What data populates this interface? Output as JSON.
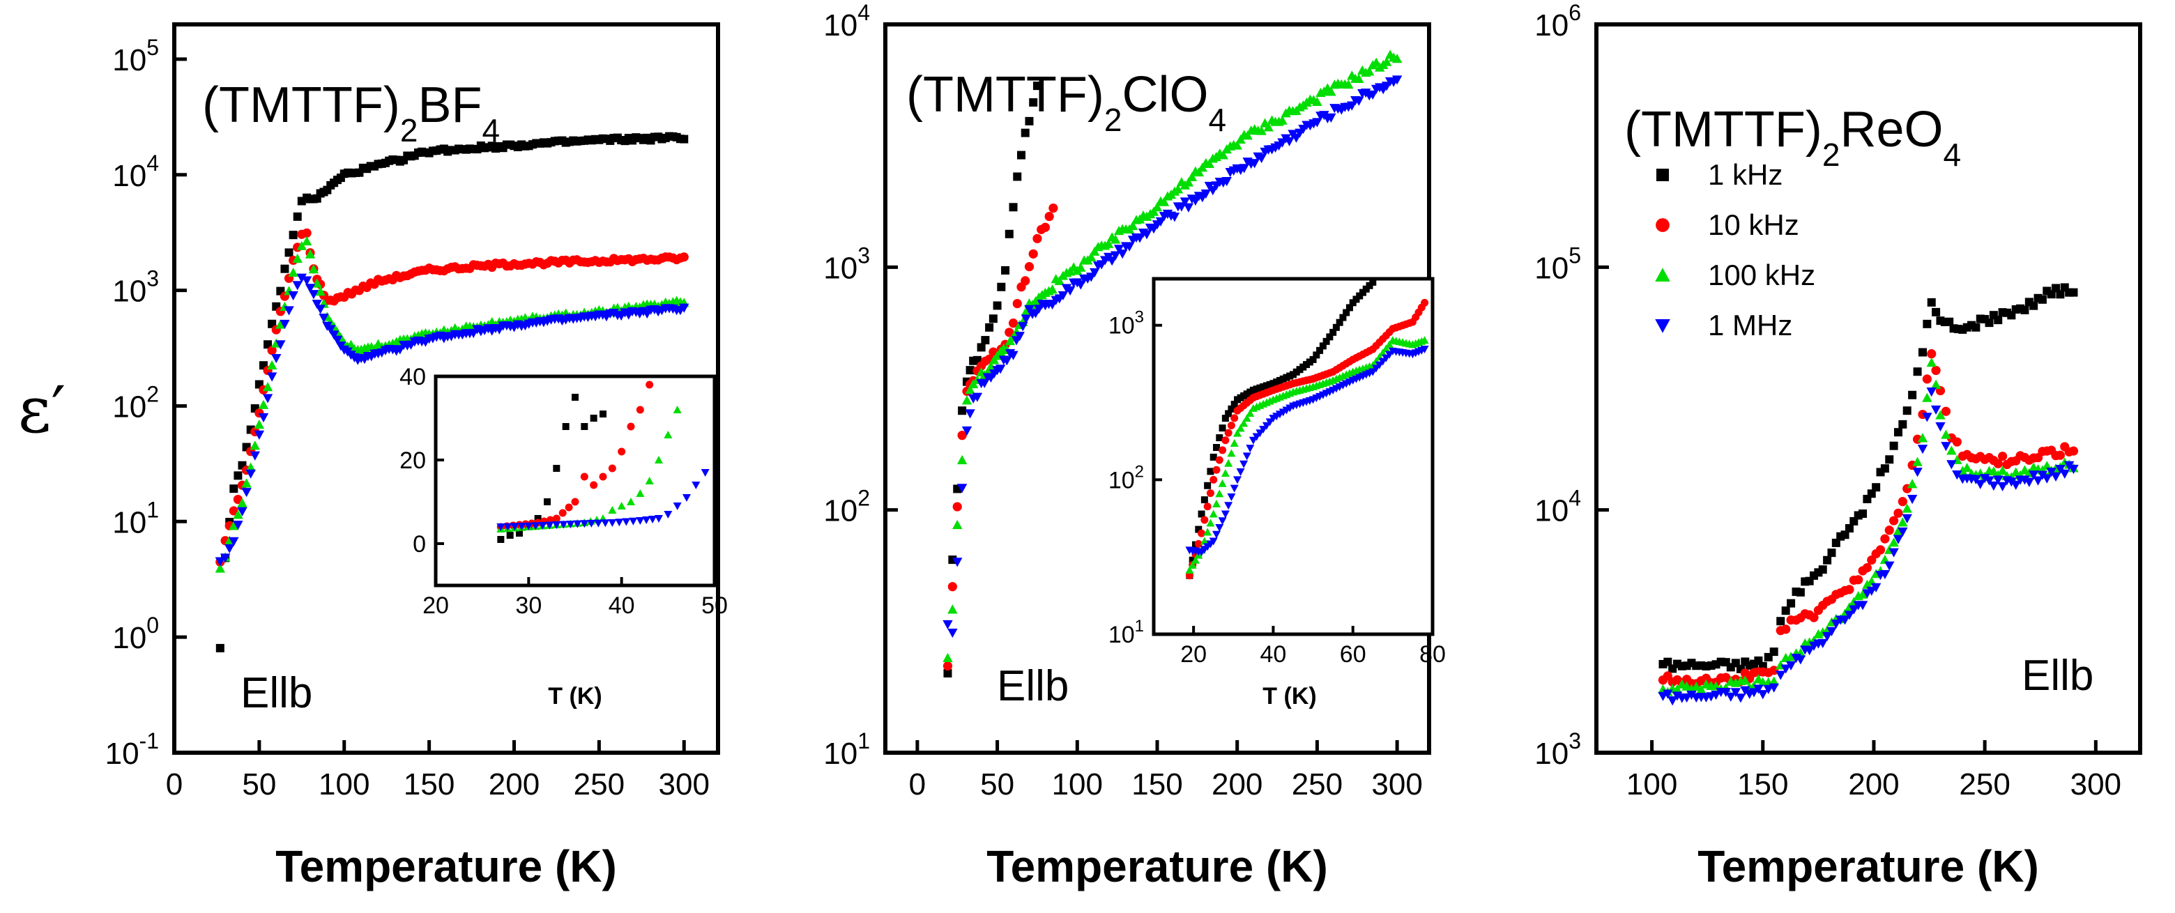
{
  "figure": {
    "ylabel": "ε′",
    "xlabel": "Temperature (K)",
    "colors": {
      "1 kHz": "#000000",
      "10 kHz": "#ff0000",
      "100 kHz": "#00dd00",
      "1 MHz": "#0000ff"
    },
    "legend": [
      "1 kHz",
      "10 kHz",
      "100 kHz",
      "1 MHz"
    ]
  },
  "chart_data": [
    {
      "type": "scatter",
      "title_base": "(TMTTF)",
      "title_sub1": "2",
      "title_mid": "BF",
      "title_sub2": "4",
      "annotation": "Ellb",
      "xlabel": "Temperature (K)",
      "ylabel": "ε′",
      "xlim": [
        0,
        320
      ],
      "ylim": [
        0.1,
        200000
      ],
      "yscale": "log",
      "xticks": [
        "0",
        "50",
        "100",
        "150",
        "200",
        "250",
        "300"
      ],
      "yticks": [
        {
          "base": "10",
          "exp": "-1",
          "v": 0.1
        },
        {
          "base": "10",
          "exp": "0",
          "v": 1
        },
        {
          "base": "10",
          "exp": "1",
          "v": 10
        },
        {
          "base": "10",
          "exp": "2",
          "v": 100
        },
        {
          "base": "10",
          "exp": "3",
          "v": 1000
        },
        {
          "base": "10",
          "exp": "4",
          "v": 10000
        },
        {
          "base": "10",
          "exp": "5",
          "v": 100000
        }
      ],
      "series": [
        {
          "name": "1 kHz",
          "marker": "square",
          "x": [
            27,
            30,
            35,
            40,
            45,
            50,
            55,
            60,
            65,
            70,
            75,
            78,
            82,
            90,
            100,
            120,
            150,
            200,
            250,
            300
          ],
          "y": [
            0.8,
            5,
            20,
            30,
            60,
            150,
            350,
            700,
            1500,
            3000,
            6000,
            6500,
            6000,
            7500,
            10000,
            12000,
            16000,
            18000,
            20000,
            21000
          ]
        },
        {
          "name": "10 kHz",
          "marker": "circle",
          "x": [
            27,
            30,
            35,
            40,
            45,
            50,
            55,
            60,
            65,
            70,
            75,
            78,
            82,
            90,
            100,
            120,
            150,
            200,
            250,
            300
          ],
          "y": [
            4.5,
            7,
            12,
            20,
            40,
            90,
            200,
            450,
            900,
            1800,
            3000,
            3200,
            1500,
            800,
            900,
            1200,
            1500,
            1700,
            1800,
            1900
          ]
        },
        {
          "name": "100 kHz",
          "marker": "triangle-up",
          "x": [
            27,
            30,
            35,
            40,
            45,
            50,
            55,
            60,
            65,
            70,
            75,
            78,
            82,
            90,
            100,
            110,
            120,
            150,
            200,
            250,
            300
          ],
          "y": [
            4,
            5,
            9,
            15,
            30,
            70,
            150,
            350,
            700,
            1400,
            2500,
            2700,
            1500,
            600,
            350,
            300,
            330,
            420,
            550,
            650,
            800
          ]
        },
        {
          "name": "1 MHz",
          "marker": "triangle-down",
          "x": [
            27,
            30,
            35,
            40,
            45,
            50,
            55,
            60,
            65,
            70,
            75,
            78,
            82,
            90,
            100,
            110,
            120,
            150,
            200,
            250,
            300
          ],
          "y": [
            4.5,
            5,
            7,
            12,
            25,
            55,
            120,
            250,
            500,
            900,
            1300,
            1250,
            900,
            500,
            300,
            250,
            280,
            380,
            500,
            600,
            700
          ]
        }
      ],
      "inset": {
        "xlim": [
          20,
          50
        ],
        "ylim": [
          -10,
          40
        ],
        "yscale": "linear",
        "xticks": [
          "20",
          "30",
          "40",
          "50"
        ],
        "yticks": [
          "0",
          "20",
          "40"
        ],
        "xlabel": "T (K)",
        "series": [
          {
            "name": "1 kHz",
            "x": [
              27,
              28,
              29,
              30,
              31,
              32,
              33,
              34,
              35,
              36,
              37,
              38
            ],
            "y": [
              1,
              2,
              2.5,
              4,
              6,
              10,
              18,
              28,
              35,
              28,
              30,
              31
            ]
          },
          {
            "name": "10 kHz",
            "x": [
              27,
              29,
              31,
              33,
              35,
              36,
              37,
              38,
              39,
              40,
              41,
              42,
              43,
              44
            ],
            "y": [
              4,
              4.5,
              5,
              6,
              10,
              16,
              14,
              16,
              18,
              22,
              28,
              32,
              38,
              40
            ]
          },
          {
            "name": "100 kHz",
            "x": [
              27,
              30,
              33,
              36,
              38,
              39,
              40,
              41,
              42,
              43,
              44,
              45,
              46,
              47
            ],
            "y": [
              3.5,
              4,
              4.5,
              5,
              6,
              8,
              9,
              10,
              12,
              15,
              20,
              26,
              32,
              40
            ]
          },
          {
            "name": "1 MHz",
            "x": [
              27,
              30,
              33,
              36,
              39,
              42,
              44,
              45,
              46,
              47,
              48,
              49,
              50
            ],
            "y": [
              4,
              4.2,
              4.5,
              4.8,
              5,
              5.5,
              6,
              7,
              9,
              11,
              14,
              17,
              21
            ]
          }
        ]
      }
    },
    {
      "type": "scatter",
      "title_base": "(TMTTF)",
      "title_sub1": "2",
      "title_mid": "ClO",
      "title_sub2": "4",
      "annotation": "Ellb",
      "xlabel": "Temperature (K)",
      "xlim": [
        -20,
        320
      ],
      "ylim": [
        10,
        10000
      ],
      "yscale": "log",
      "xticks": [
        "0",
        "50",
        "100",
        "150",
        "200",
        "250",
        "300"
      ],
      "yticks": [
        {
          "base": "10",
          "exp": "1",
          "v": 10
        },
        {
          "base": "10",
          "exp": "2",
          "v": 100
        },
        {
          "base": "10",
          "exp": "3",
          "v": 1000
        },
        {
          "base": "10",
          "exp": "4",
          "v": 10000
        }
      ],
      "series": [
        {
          "name": "1 kHz",
          "marker": "square",
          "x": [
            19,
            22,
            25,
            28,
            31,
            35,
            40,
            45,
            50,
            55,
            60,
            65,
            70,
            75
          ],
          "y": [
            22,
            60,
            120,
            250,
            350,
            400,
            450,
            550,
            700,
            1000,
            1800,
            3000,
            4000,
            5500
          ]
        },
        {
          "name": "10 kHz",
          "marker": "circle",
          "x": [
            19,
            22,
            25,
            28,
            31,
            35,
            40,
            45,
            50,
            55,
            60,
            65,
            70,
            75,
            80,
            85
          ],
          "y": [
            22,
            50,
            100,
            200,
            300,
            350,
            380,
            420,
            450,
            500,
            600,
            800,
            1000,
            1300,
            1500,
            1700
          ]
        },
        {
          "name": "100 kHz",
          "marker": "triangle-up",
          "x": [
            19,
            22,
            25,
            28,
            31,
            35,
            40,
            50,
            60,
            70,
            80,
            100,
            150,
            200,
            250,
            300
          ],
          "y": [
            24,
            40,
            90,
            160,
            280,
            330,
            360,
            420,
            500,
            700,
            800,
            1000,
            1800,
            3300,
            5000,
            7500
          ]
        },
        {
          "name": "1 MHz",
          "marker": "triangle-down",
          "x": [
            19,
            22,
            25,
            28,
            31,
            35,
            40,
            50,
            60,
            70,
            80,
            100,
            150,
            200,
            250,
            300
          ],
          "y": [
            35,
            30,
            60,
            120,
            220,
            280,
            320,
            380,
            450,
            650,
            700,
            850,
            1500,
            2500,
            4000,
            6000
          ]
        }
      ],
      "inset": {
        "xlim": [
          10,
          80
        ],
        "ylim": [
          10,
          2000
        ],
        "yscale": "log",
        "xticks": [
          "20",
          "40",
          "60",
          "80"
        ],
        "yticks": [
          {
            "base": "10",
            "exp": "1",
            "v": 10
          },
          {
            "base": "10",
            "exp": "2",
            "v": 100
          },
          {
            "base": "10",
            "exp": "3",
            "v": 1000
          }
        ],
        "xlabel": "T (K)",
        "series": [
          {
            "name": "1 kHz",
            "x": [
              19,
              22,
              25,
              28,
              31,
              35,
              40,
              45,
              50,
              55,
              60,
              65
            ],
            "y": [
              24,
              60,
              140,
              250,
              330,
              380,
              420,
              480,
              600,
              900,
              1400,
              1900
            ]
          },
          {
            "name": "10 kHz",
            "x": [
              19,
              22,
              25,
              28,
              31,
              35,
              40,
              45,
              50,
              55,
              60,
              65,
              70,
              75,
              78
            ],
            "y": [
              24,
              45,
              100,
              180,
              280,
              340,
              380,
              420,
              450,
              500,
              600,
              700,
              950,
              1050,
              1400
            ]
          },
          {
            "name": "100 kHz",
            "x": [
              19,
              22,
              25,
              28,
              31,
              35,
              40,
              45,
              50,
              55,
              60,
              65,
              70,
              75,
              78
            ],
            "y": [
              26,
              35,
              60,
              110,
              200,
              290,
              330,
              370,
              400,
              440,
              500,
              550,
              800,
              750,
              800
            ]
          },
          {
            "name": "1 MHz",
            "x": [
              19,
              22,
              25,
              28,
              31,
              35,
              40,
              45,
              50,
              55,
              60,
              65,
              70,
              75,
              78
            ],
            "y": [
              35,
              34,
              40,
              60,
              100,
              180,
              250,
              300,
              330,
              380,
              440,
              500,
              680,
              650,
              700
            ]
          }
        ]
      }
    },
    {
      "type": "scatter",
      "title_base": "(TMTTF)",
      "title_sub1": "2",
      "title_mid": "ReO",
      "title_sub2": "4",
      "annotation": "Ellb",
      "xlabel": "Temperature (K)",
      "xlim": [
        75,
        320
      ],
      "ylim": [
        1000,
        1000000
      ],
      "yscale": "log",
      "xticks": [
        "100",
        "150",
        "200",
        "250",
        "300"
      ],
      "yticks": [
        {
          "base": "10",
          "exp": "3",
          "v": 1000
        },
        {
          "base": "10",
          "exp": "4",
          "v": 10000
        },
        {
          "base": "10",
          "exp": "5",
          "v": 100000
        },
        {
          "base": "10",
          "exp": "6",
          "v": 1000000
        }
      ],
      "series": [
        {
          "name": "1 kHz",
          "marker": "square",
          "x": [
            105,
            120,
            140,
            150,
            155,
            158,
            165,
            175,
            185,
            195,
            205,
            215,
            222,
            226,
            230,
            240,
            250,
            260,
            270,
            280,
            290
          ],
          "y": [
            2300,
            2300,
            2300,
            2350,
            2600,
            3500,
            4500,
            5500,
            7500,
            10000,
            15000,
            25000,
            45000,
            70000,
            60000,
            55000,
            60000,
            65000,
            70000,
            80000,
            80000
          ]
        },
        {
          "name": "10 kHz",
          "marker": "circle",
          "x": [
            105,
            120,
            140,
            150,
            155,
            158,
            165,
            175,
            185,
            195,
            205,
            215,
            222,
            226,
            230,
            235,
            240,
            250,
            260,
            270,
            280,
            290
          ],
          "y": [
            2000,
            2000,
            2050,
            2100,
            2200,
            3200,
            3500,
            3800,
            4500,
            5500,
            7500,
            12000,
            25000,
            45000,
            30000,
            20000,
            17000,
            16000,
            16000,
            16500,
            17000,
            18000
          ]
        },
        {
          "name": "100 kHz",
          "marker": "triangle-up",
          "x": [
            105,
            120,
            140,
            150,
            155,
            158,
            165,
            175,
            185,
            195,
            205,
            215,
            222,
            226,
            230,
            235,
            240,
            250,
            260,
            270,
            280,
            290
          ],
          "y": [
            1850,
            1850,
            1900,
            1950,
            2000,
            2300,
            2600,
            3000,
            3600,
            4500,
            6000,
            10000,
            20000,
            40000,
            25000,
            17000,
            15000,
            14000,
            14000,
            14500,
            15000,
            15500
          ]
        },
        {
          "name": "1 MHz",
          "marker": "triangle-down",
          "x": [
            105,
            120,
            140,
            150,
            155,
            158,
            165,
            175,
            185,
            195,
            205,
            215,
            222,
            226,
            230,
            235,
            240,
            250,
            260,
            270,
            280,
            290
          ],
          "y": [
            1700,
            1700,
            1750,
            1800,
            1850,
            2100,
            2400,
            2800,
            3400,
            4200,
            5500,
            9000,
            18000,
            30000,
            22000,
            15000,
            13500,
            13000,
            13000,
            13500,
            14000,
            15000
          ]
        }
      ]
    }
  ]
}
